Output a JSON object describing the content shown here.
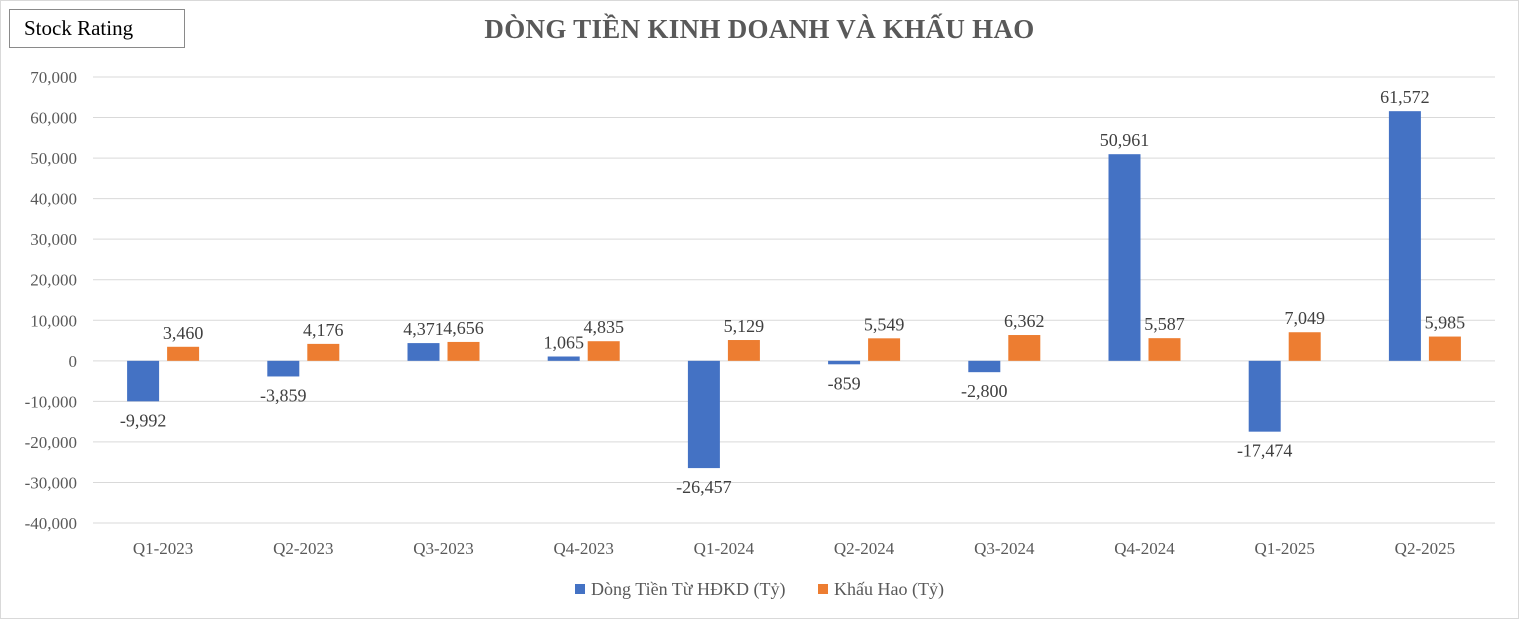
{
  "badge": {
    "text": "Stock Rating"
  },
  "colors": {
    "series1": "#4472c4",
    "series2": "#ed7d31",
    "grid": "#d9d9d9",
    "text": "#595959"
  },
  "chart_data": {
    "type": "bar",
    "title": "DÒNG TIỀN KINH DOANH VÀ KHẤU HAO",
    "categories": [
      "Q1-2023",
      "Q2-2023",
      "Q3-2023",
      "Q4-2023",
      "Q1-2024",
      "Q2-2024",
      "Q3-2024",
      "Q4-2024",
      "Q1-2025",
      "Q2-2025"
    ],
    "series": [
      {
        "name": "Dòng Tiền Từ HĐKD (Tỷ)",
        "values": [
          -9992,
          -3859,
          4371,
          1065,
          -26457,
          -859,
          -2800,
          50961,
          -17474,
          61572
        ]
      },
      {
        "name": "Khấu Hao (Tỷ)",
        "values": [
          3460,
          4176,
          4656,
          4835,
          5129,
          5549,
          6362,
          5587,
          7049,
          5985
        ]
      }
    ],
    "ylim": [
      -40000,
      70000
    ],
    "yticks": [
      -40000,
      -30000,
      -20000,
      -10000,
      0,
      10000,
      20000,
      30000,
      40000,
      50000,
      60000,
      70000
    ],
    "grid": true,
    "legend_position": "bottom"
  }
}
